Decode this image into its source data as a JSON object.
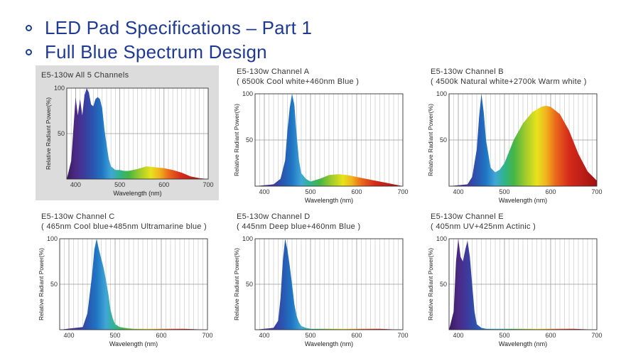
{
  "slide": {
    "bullets": [
      "LED Pad Specifications – Part 1",
      "Full Blue Spectrum Design"
    ]
  },
  "charts": {
    "all": {
      "title1": "E5-130w   All 5 Channels",
      "title2": ""
    },
    "a": {
      "title1": "E5-130w   Channel A",
      "title2": "( 6500k Cool white+460nm Blue )"
    },
    "b": {
      "title1": "E5-130w   Channel B",
      "title2": "( 4500k Natural white+2700k Warm white )"
    },
    "c": {
      "title1": "E5-130w   Channel C",
      "title2": "( 465nm Cool blue+485nm Ultramarine blue )"
    },
    "d": {
      "title1": "E5-130w   Channel D",
      "title2": "( 445nm Deep blue+460nm Blue )"
    },
    "e": {
      "title1": "E5-130w   Channel E",
      "title2": "( 405nm UV+425nm Actinic )"
    }
  },
  "chart_data": [
    {
      "type": "area",
      "id": "all",
      "title": "E5-130w   All 5 Channels",
      "xlabel": "Wavelength (nm)",
      "ylabel": "Relative Radiant Power(%)",
      "xlim": [
        380,
        700
      ],
      "ylim": [
        0,
        100
      ],
      "xticks": [
        400,
        500,
        600,
        700
      ],
      "yticks": [
        50,
        100
      ],
      "x": [
        380,
        390,
        395,
        400,
        405,
        410,
        415,
        420,
        425,
        430,
        435,
        440,
        445,
        450,
        455,
        460,
        465,
        470,
        475,
        480,
        490,
        500,
        510,
        520,
        540,
        560,
        580,
        600,
        620,
        640,
        660,
        680,
        700
      ],
      "y": [
        0,
        20,
        55,
        90,
        70,
        88,
        70,
        92,
        100,
        95,
        82,
        80,
        88,
        90,
        88,
        78,
        55,
        38,
        22,
        14,
        10,
        10,
        9,
        9,
        11,
        14,
        13,
        12,
        10,
        7,
        3,
        1,
        0
      ]
    },
    {
      "type": "area",
      "id": "a",
      "title": "E5-130w   Channel A",
      "xlabel": "Wavelength (nm)",
      "ylabel": "Relative Radiant Power(%)",
      "xlim": [
        380,
        700
      ],
      "ylim": [
        0,
        100
      ],
      "xticks": [
        400,
        500,
        600,
        700
      ],
      "yticks": [
        50,
        100
      ],
      "x": [
        380,
        420,
        435,
        445,
        450,
        455,
        460,
        465,
        470,
        475,
        480,
        490,
        500,
        520,
        540,
        560,
        580,
        600,
        620,
        640,
        660,
        680,
        700
      ],
      "y": [
        0,
        2,
        8,
        28,
        60,
        85,
        100,
        88,
        55,
        28,
        14,
        8,
        5,
        8,
        12,
        13,
        12,
        10,
        8,
        6,
        4,
        2,
        0
      ]
    },
    {
      "type": "area",
      "id": "b",
      "title": "E5-130w   Channel B",
      "xlabel": "Wavelength (nm)",
      "ylabel": "Relative Radiant Power(%)",
      "xlim": [
        380,
        700
      ],
      "ylim": [
        0,
        100
      ],
      "xticks": [
        400,
        500,
        600,
        700
      ],
      "yticks": [
        50,
        100
      ],
      "x": [
        380,
        420,
        430,
        440,
        445,
        450,
        455,
        460,
        470,
        480,
        490,
        500,
        520,
        540,
        560,
        580,
        590,
        600,
        620,
        640,
        660,
        680,
        700
      ],
      "y": [
        0,
        2,
        10,
        40,
        75,
        100,
        80,
        50,
        20,
        15,
        18,
        25,
        50,
        68,
        80,
        86,
        87,
        86,
        78,
        60,
        35,
        16,
        6
      ]
    },
    {
      "type": "area",
      "id": "c",
      "title": "E5-130w   Channel C",
      "xlabel": "Wavelength (nm)",
      "ylabel": "Relative Radiant Power(%)",
      "xlim": [
        380,
        700
      ],
      "ylim": [
        0,
        100
      ],
      "xticks": [
        400,
        500,
        600,
        700
      ],
      "yticks": [
        50,
        100
      ],
      "x": [
        380,
        430,
        440,
        450,
        455,
        460,
        465,
        470,
        475,
        480,
        485,
        490,
        495,
        500,
        510,
        520,
        540,
        560,
        600,
        650,
        700
      ],
      "y": [
        0,
        3,
        18,
        60,
        88,
        100,
        88,
        78,
        68,
        55,
        40,
        22,
        12,
        6,
        3,
        2,
        1,
        1,
        1,
        1,
        0
      ]
    },
    {
      "type": "area",
      "id": "d",
      "title": "E5-130w   Channel D",
      "xlabel": "Wavelength (nm)",
      "ylabel": "Relative Radiant Power(%)",
      "xlim": [
        380,
        700
      ],
      "ylim": [
        0,
        100
      ],
      "xticks": [
        400,
        500,
        600,
        700
      ],
      "yticks": [
        50,
        100
      ],
      "x": [
        380,
        420,
        430,
        435,
        440,
        445,
        450,
        455,
        460,
        465,
        470,
        475,
        480,
        490,
        500,
        520,
        560,
        600,
        650,
        700
      ],
      "y": [
        0,
        2,
        10,
        35,
        75,
        100,
        88,
        70,
        50,
        28,
        15,
        8,
        4,
        2,
        1,
        1,
        1,
        1,
        1,
        0
      ]
    },
    {
      "type": "area",
      "id": "e",
      "title": "E5-130w   Channel E",
      "xlabel": "Wavelength (nm)",
      "ylabel": "Relative Radiant Power(%)",
      "xlim": [
        380,
        700
      ],
      "ylim": [
        0,
        100
      ],
      "xticks": [
        400,
        500,
        600,
        700
      ],
      "yticks": [
        50,
        100
      ],
      "x": [
        380,
        390,
        395,
        400,
        405,
        410,
        415,
        420,
        425,
        430,
        435,
        440,
        450,
        460,
        480,
        520,
        560,
        600,
        650,
        700
      ],
      "y": [
        0,
        20,
        75,
        100,
        80,
        75,
        88,
        98,
        80,
        50,
        20,
        6,
        2,
        1,
        1,
        1,
        1,
        1,
        1,
        0
      ]
    }
  ]
}
